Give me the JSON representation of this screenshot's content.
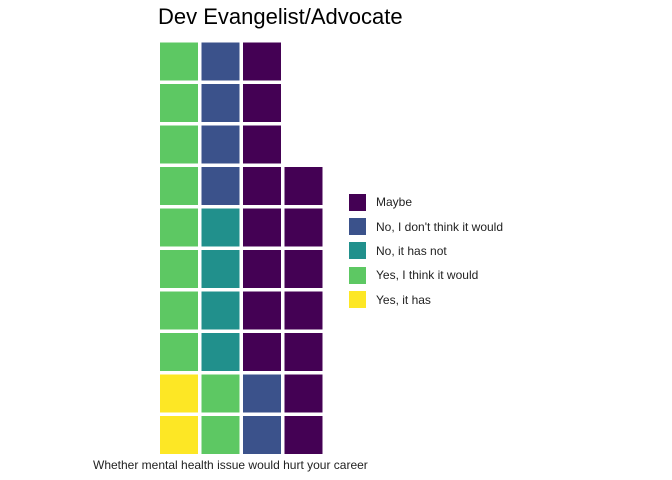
{
  "chart_data": {
    "type": "waffle",
    "title": "Dev Evangelist/Advocate",
    "xlabel": "Whether mental health issue would hurt your career",
    "ylabel": "",
    "unit_per_square": 1,
    "columns": 4,
    "categories": [
      "Maybe",
      "No, I don't think it would",
      "No, it has not",
      "Yes, I think it would",
      "Yes, it has"
    ],
    "values": [
      15,
      6,
      4,
      10,
      2
    ],
    "colors": {
      "Maybe": "#440154",
      "No, I don't think it would": "#3B528B",
      "No, it has not": "#21908C",
      "Yes, I think it would": "#5DC863",
      "Yes, it has": "#FDE725"
    },
    "grid": "off",
    "legend_position": "right"
  }
}
